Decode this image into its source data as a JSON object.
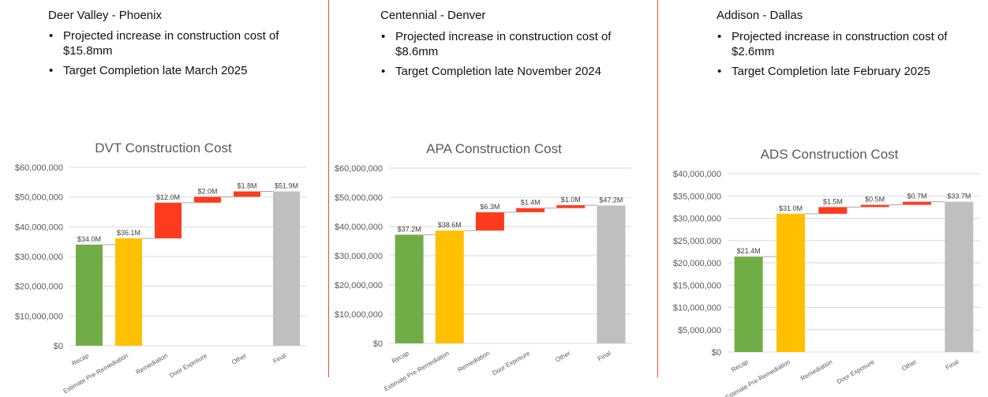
{
  "panels": [
    {
      "site": "Deer Valley - Phoenix",
      "bullets": [
        "Projected increase in construction cost of $15.8mm",
        "Target Completion late March 2025"
      ],
      "bullet_lines": [
        [
          "Projected increase in construction cost of",
          "$15.8mm"
        ],
        [
          "Target Completion late March 2025"
        ]
      ]
    },
    {
      "site": "Centennial - Denver",
      "bullets": [
        "Projected increase in construction cost of $8.6mm",
        "Target Completion late November 2024"
      ],
      "bullet_lines": [
        [
          "Projected increase in construction cost of",
          "$8.6mm"
        ],
        [
          "Target Completion late November 2024"
        ]
      ]
    },
    {
      "site": "Addison - Dallas",
      "bullets": [
        "Projected increase in construction cost of $2.6mm",
        "Target Completion late February 2025"
      ],
      "bullet_lines": [
        [
          "Projected increase in construction cost of",
          "$2.6mm"
        ],
        [
          "Target Completion late February 2025"
        ]
      ]
    }
  ],
  "colors": {
    "increase_green": "#70ad47",
    "estimate_yellow": "#ffc000",
    "delta_red": "#ff3b1f",
    "final_gray": "#bfbfbf",
    "divider": "#d9573a",
    "grid": "#d9d9d9"
  },
  "chart_data": [
    {
      "type": "waterfall",
      "title": "DVT Construction Cost",
      "categories": [
        "Recap",
        "Estimate Pre-Remediation",
        "Remediation",
        "Door Exposure",
        "Other",
        "Final"
      ],
      "bars": [
        {
          "kind": "total",
          "base": 0,
          "value": 34.0,
          "label": "$34.0M",
          "color": "#70ad47"
        },
        {
          "kind": "total",
          "base": 0,
          "value": 36.1,
          "label": "$36.1M",
          "color": "#ffc000"
        },
        {
          "kind": "delta",
          "base": 36.1,
          "value": 12.0,
          "label": "$12.0M",
          "color": "#ff3b1f"
        },
        {
          "kind": "delta",
          "base": 48.1,
          "value": 2.0,
          "label": "$2.0M",
          "color": "#ff3b1f"
        },
        {
          "kind": "delta",
          "base": 50.1,
          "value": 1.8,
          "label": "$1.8M",
          "color": "#ff3b1f"
        },
        {
          "kind": "total",
          "base": 0,
          "value": 51.9,
          "label": "$51.9M",
          "color": "#bfbfbf"
        }
      ],
      "unit": "M",
      "ylim": [
        0,
        60
      ],
      "yticks": [
        {
          "v": 0,
          "label": "$0"
        },
        {
          "v": 10,
          "label": "$10,000,000"
        },
        {
          "v": 20,
          "label": "$20,000,000"
        },
        {
          "v": 30,
          "label": "$30,000,000"
        },
        {
          "v": 40,
          "label": "$40,000,000"
        },
        {
          "v": 50,
          "label": "$50,000,000"
        },
        {
          "v": 60,
          "label": "$60,000,000"
        }
      ],
      "grid": true,
      "legend": "none"
    },
    {
      "type": "waterfall",
      "title": "APA Construction Cost",
      "categories": [
        "Recap",
        "Estimate Pre-Remediation",
        "Remediation",
        "Door Exposure",
        "Other",
        "Final"
      ],
      "bars": [
        {
          "kind": "total",
          "base": 0,
          "value": 37.2,
          "label": "$37.2M",
          "color": "#70ad47"
        },
        {
          "kind": "total",
          "base": 0,
          "value": 38.6,
          "label": "$38.6M",
          "color": "#ffc000"
        },
        {
          "kind": "delta",
          "base": 38.6,
          "value": 6.3,
          "label": "$6.3M",
          "color": "#ff3b1f"
        },
        {
          "kind": "delta",
          "base": 44.9,
          "value": 1.4,
          "label": "$1.4M",
          "color": "#ff3b1f"
        },
        {
          "kind": "delta",
          "base": 46.3,
          "value": 1.0,
          "label": "$1.0M",
          "color": "#ff3b1f"
        },
        {
          "kind": "total",
          "base": 0,
          "value": 47.2,
          "label": "$47.2M",
          "color": "#bfbfbf"
        }
      ],
      "unit": "M",
      "ylim": [
        0,
        60
      ],
      "yticks": [
        {
          "v": 0,
          "label": "$0"
        },
        {
          "v": 10,
          "label": "$10,000,000"
        },
        {
          "v": 20,
          "label": "$20,000,000"
        },
        {
          "v": 30,
          "label": "$30,000,000"
        },
        {
          "v": 40,
          "label": "$40,000,000"
        },
        {
          "v": 50,
          "label": "$50,000,000"
        },
        {
          "v": 60,
          "label": "$60,000,000"
        }
      ],
      "grid": true,
      "legend": "none"
    },
    {
      "type": "waterfall",
      "title": "ADS Construction Cost",
      "categories": [
        "Recap",
        "Estimate Pre-Remediation",
        "Remediation",
        "Door Exposure",
        "Other",
        "Final"
      ],
      "bars": [
        {
          "kind": "total",
          "base": 0,
          "value": 21.4,
          "label": "$21.4M",
          "color": "#70ad47"
        },
        {
          "kind": "total",
          "base": 0,
          "value": 31.0,
          "label": "$31.0M",
          "color": "#ffc000"
        },
        {
          "kind": "delta",
          "base": 31.0,
          "value": 1.5,
          "label": "$1.5M",
          "color": "#ff3b1f"
        },
        {
          "kind": "delta",
          "base": 32.5,
          "value": 0.5,
          "label": "$0.5M",
          "color": "#ff3b1f"
        },
        {
          "kind": "delta",
          "base": 33.0,
          "value": 0.7,
          "label": "$0.7M",
          "color": "#ff3b1f"
        },
        {
          "kind": "total",
          "base": 0,
          "value": 33.7,
          "label": "$33.7M",
          "color": "#bfbfbf"
        }
      ],
      "unit": "M",
      "ylim": [
        0,
        40
      ],
      "yticks": [
        {
          "v": 0,
          "label": "$0"
        },
        {
          "v": 5,
          "label": "$5,000,000"
        },
        {
          "v": 10,
          "label": "$10,000,000"
        },
        {
          "v": 15,
          "label": "$15,000,000"
        },
        {
          "v": 20,
          "label": "$20,000,000"
        },
        {
          "v": 25,
          "label": "$25,000,000"
        },
        {
          "v": 30,
          "label": "$30,000,000"
        },
        {
          "v": 35,
          "label": "$35,000,000"
        },
        {
          "v": 40,
          "label": "$40,000,000"
        }
      ],
      "grid": true,
      "legend": "none"
    }
  ]
}
